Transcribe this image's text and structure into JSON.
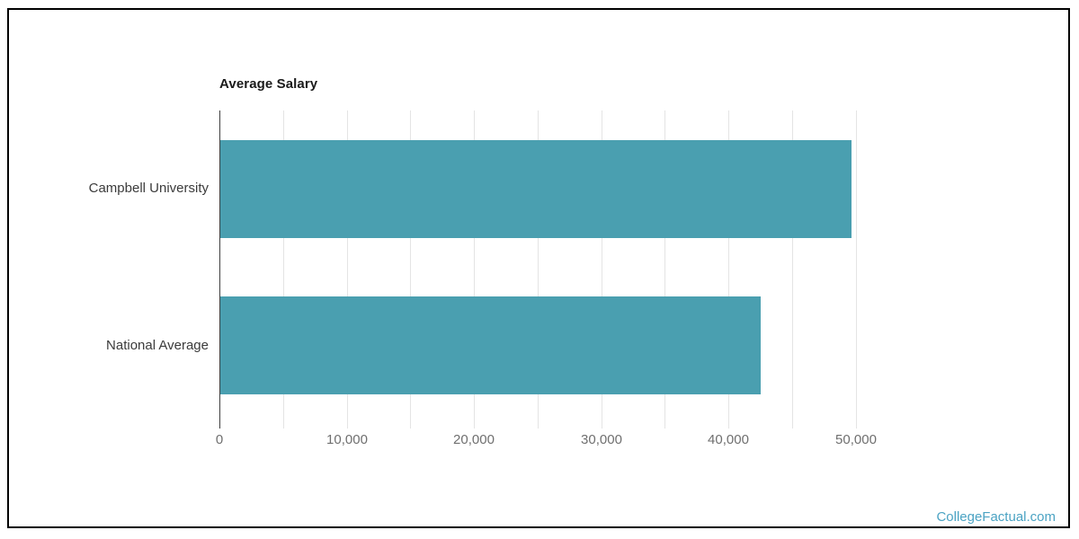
{
  "frame": {
    "border_color": "#000000",
    "background": "#ffffff"
  },
  "chart_data": {
    "type": "bar",
    "orientation": "horizontal",
    "title": "Average Salary",
    "categories": [
      "Campbell University",
      "National Average"
    ],
    "values": [
      49600,
      42500
    ],
    "xlabel": "",
    "ylabel": "",
    "xlim": [
      0,
      50000
    ],
    "x_ticks": [
      0,
      10000,
      20000,
      30000,
      40000,
      50000
    ],
    "x_tick_labels": [
      "0",
      "10,000",
      "20,000",
      "30,000",
      "40,000",
      "50,000"
    ],
    "minor_grid_interval": 5000,
    "grid": true,
    "legend": false,
    "bar_color": "#4A9FB0",
    "gridline_color": "#e4e4e4",
    "axis_line_color": "#3f3f3f",
    "title_color": "#1a1a1a",
    "category_label_color": "#3b3b3b",
    "tick_label_color": "#6f6f6f"
  },
  "watermark": {
    "text": "CollegeFactual.com",
    "color": "#4BA3C3"
  }
}
